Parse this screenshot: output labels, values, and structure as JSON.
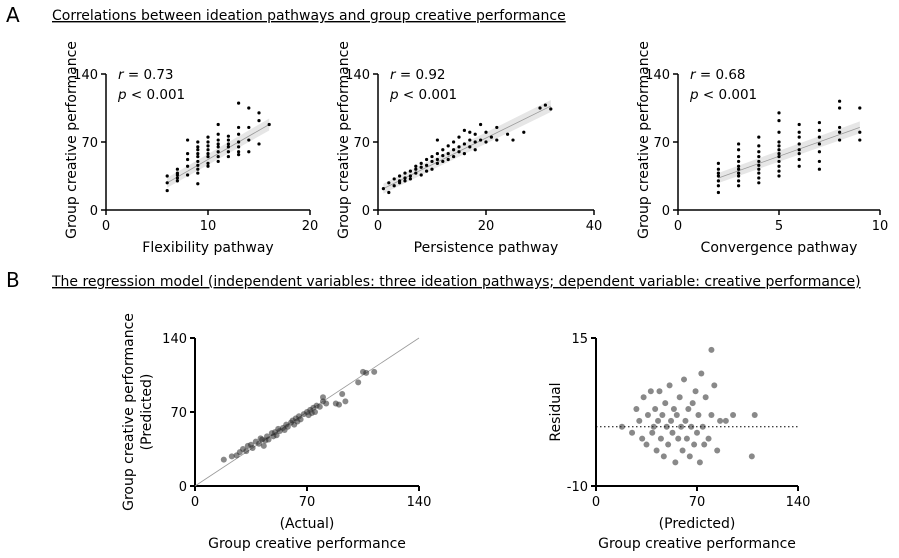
{
  "panel_labels": {
    "a": "A",
    "b": "B"
  },
  "titles": {
    "a": "Correlations between ideation pathways and group creative performance",
    "b": "The regression model (independent variables: three ideation pathways; dependent variable: creative performance)"
  },
  "chart_data": [
    {
      "type": "scatter",
      "xlabel": "Flexibility pathway",
      "ylabel": "Group creative performance",
      "xlim": [
        0,
        20
      ],
      "ylim": [
        0,
        140
      ],
      "xticks": [
        "0",
        "10",
        "20"
      ],
      "yticks": [
        "0",
        "70",
        "140"
      ],
      "stat_r": "= 0.73",
      "stat_p": "< 0.001",
      "fit": [
        [
          6,
          28
        ],
        [
          16,
          88
        ]
      ],
      "confidence_band": true,
      "points": [
        [
          6,
          20
        ],
        [
          6,
          28
        ],
        [
          6,
          35
        ],
        [
          7,
          30
        ],
        [
          7,
          33
        ],
        [
          7,
          36
        ],
        [
          7,
          38
        ],
        [
          7,
          42
        ],
        [
          8,
          36
        ],
        [
          8,
          45
        ],
        [
          8,
          52
        ],
        [
          8,
          58
        ],
        [
          8,
          72
        ],
        [
          9,
          27
        ],
        [
          9,
          38
        ],
        [
          9,
          42
        ],
        [
          9,
          46
        ],
        [
          9,
          50
        ],
        [
          9,
          55
        ],
        [
          9,
          58
        ],
        [
          9,
          62
        ],
        [
          9,
          65
        ],
        [
          9,
          70
        ],
        [
          10,
          45
        ],
        [
          10,
          48
        ],
        [
          10,
          55
        ],
        [
          10,
          58
        ],
        [
          10,
          62
        ],
        [
          10,
          66
        ],
        [
          10,
          70
        ],
        [
          10,
          75
        ],
        [
          11,
          50
        ],
        [
          11,
          55
        ],
        [
          11,
          60
        ],
        [
          11,
          65
        ],
        [
          11,
          68
        ],
        [
          11,
          72
        ],
        [
          11,
          78
        ],
        [
          11,
          88
        ],
        [
          12,
          55
        ],
        [
          12,
          60
        ],
        [
          12,
          65
        ],
        [
          12,
          68
        ],
        [
          12,
          72
        ],
        [
          12,
          76
        ],
        [
          13,
          57
        ],
        [
          13,
          60
        ],
        [
          13,
          65
        ],
        [
          13,
          70
        ],
        [
          13,
          78
        ],
        [
          13,
          85
        ],
        [
          13,
          110
        ],
        [
          14,
          60
        ],
        [
          14,
          72
        ],
        [
          14,
          85
        ],
        [
          14,
          105
        ],
        [
          15,
          68
        ],
        [
          15,
          92
        ],
        [
          15,
          100
        ],
        [
          16,
          88
        ]
      ]
    },
    {
      "type": "scatter",
      "xlabel": "Persistence pathway",
      "ylabel": "Group creative performance",
      "xlim": [
        0,
        40
      ],
      "ylim": [
        0,
        140
      ],
      "xticks": [
        "0",
        "20",
        "40"
      ],
      "yticks": [
        "0",
        "70",
        "140"
      ],
      "stat_r": "= 0.92",
      "stat_p": "< 0.001",
      "fit": [
        [
          1,
          22
        ],
        [
          32,
          107
        ]
      ],
      "confidence_band": true,
      "points": [
        [
          1,
          22
        ],
        [
          2,
          18
        ],
        [
          2,
          28
        ],
        [
          3,
          25
        ],
        [
          3,
          32
        ],
        [
          4,
          30
        ],
        [
          4,
          35
        ],
        [
          4,
          28
        ],
        [
          5,
          33
        ],
        [
          5,
          38
        ],
        [
          5,
          30
        ],
        [
          6,
          35
        ],
        [
          6,
          40
        ],
        [
          6,
          32
        ],
        [
          7,
          38
        ],
        [
          7,
          42
        ],
        [
          7,
          45
        ],
        [
          8,
          36
        ],
        [
          8,
          44
        ],
        [
          8,
          48
        ],
        [
          9,
          40
        ],
        [
          9,
          46
        ],
        [
          9,
          52
        ],
        [
          10,
          42
        ],
        [
          10,
          50
        ],
        [
          10,
          55
        ],
        [
          11,
          48
        ],
        [
          11,
          52
        ],
        [
          11,
          58
        ],
        [
          11,
          72
        ],
        [
          12,
          50
        ],
        [
          12,
          56
        ],
        [
          12,
          62
        ],
        [
          13,
          52
        ],
        [
          13,
          58
        ],
        [
          13,
          66
        ],
        [
          14,
          55
        ],
        [
          14,
          62
        ],
        [
          14,
          70
        ],
        [
          15,
          60
        ],
        [
          15,
          65
        ],
        [
          15,
          75
        ],
        [
          16,
          58
        ],
        [
          16,
          68
        ],
        [
          16,
          82
        ],
        [
          17,
          65
        ],
        [
          17,
          72
        ],
        [
          17,
          80
        ],
        [
          18,
          62
        ],
        [
          18,
          70
        ],
        [
          18,
          78
        ],
        [
          19,
          72
        ],
        [
          19,
          88
        ],
        [
          20,
          70
        ],
        [
          20,
          80
        ],
        [
          21,
          75
        ],
        [
          22,
          72
        ],
        [
          22,
          85
        ],
        [
          24,
          78
        ],
        [
          25,
          72
        ],
        [
          27,
          80
        ],
        [
          30,
          105
        ],
        [
          31,
          108
        ],
        [
          32,
          104
        ]
      ]
    },
    {
      "type": "scatter",
      "xlabel": "Convergence pathway",
      "ylabel": "Group creative performance",
      "xlim": [
        0,
        10
      ],
      "ylim": [
        0,
        140
      ],
      "xticks": [
        "0",
        "5",
        "10"
      ],
      "yticks": [
        "0",
        "70",
        "140"
      ],
      "stat_r": "= 0.68",
      "stat_p": "< 0.001",
      "fit": [
        [
          2,
          33
        ],
        [
          9,
          85
        ]
      ],
      "confidence_band": true,
      "points": [
        [
          2,
          18
        ],
        [
          2,
          25
        ],
        [
          2,
          30
        ],
        [
          2,
          35
        ],
        [
          2,
          38
        ],
        [
          2,
          42
        ],
        [
          2,
          48
        ],
        [
          3,
          25
        ],
        [
          3,
          30
        ],
        [
          3,
          35
        ],
        [
          3,
          38
        ],
        [
          3,
          42
        ],
        [
          3,
          45
        ],
        [
          3,
          50
        ],
        [
          3,
          55
        ],
        [
          3,
          62
        ],
        [
          3,
          68
        ],
        [
          4,
          28
        ],
        [
          4,
          33
        ],
        [
          4,
          38
        ],
        [
          4,
          42
        ],
        [
          4,
          46
        ],
        [
          4,
          50
        ],
        [
          4,
          55
        ],
        [
          4,
          60
        ],
        [
          4,
          66
        ],
        [
          4,
          75
        ],
        [
          5,
          35
        ],
        [
          5,
          40
        ],
        [
          5,
          45
        ],
        [
          5,
          50
        ],
        [
          5,
          55
        ],
        [
          5,
          58
        ],
        [
          5,
          62
        ],
        [
          5,
          66
        ],
        [
          5,
          70
        ],
        [
          5,
          80
        ],
        [
          5,
          92
        ],
        [
          5,
          100
        ],
        [
          6,
          45
        ],
        [
          6,
          52
        ],
        [
          6,
          58
        ],
        [
          6,
          62
        ],
        [
          6,
          68
        ],
        [
          6,
          75
        ],
        [
          6,
          80
        ],
        [
          6,
          88
        ],
        [
          7,
          42
        ],
        [
          7,
          50
        ],
        [
          7,
          60
        ],
        [
          7,
          68
        ],
        [
          7,
          75
        ],
        [
          7,
          82
        ],
        [
          7,
          90
        ],
        [
          8,
          72
        ],
        [
          8,
          80
        ],
        [
          8,
          85
        ],
        [
          8,
          105
        ],
        [
          8,
          112
        ],
        [
          9,
          72
        ],
        [
          9,
          80
        ],
        [
          9,
          105
        ]
      ]
    },
    {
      "type": "scatter",
      "xlabel": "(Actual)",
      "xlabel2": "Group creative performance",
      "ylabel": "Group creative performance",
      "ylabel2": "(Predicted)",
      "xlim": [
        0,
        140
      ],
      "ylim": [
        0,
        140
      ],
      "xticks": [
        "0",
        "70",
        "140"
      ],
      "yticks": [
        "0",
        "70",
        "140"
      ],
      "fit": [
        [
          0,
          0
        ],
        [
          140,
          140
        ]
      ],
      "points": [
        [
          18,
          25
        ],
        [
          23,
          28
        ],
        [
          26,
          29
        ],
        [
          28,
          32
        ],
        [
          30,
          35
        ],
        [
          32,
          33
        ],
        [
          33,
          38
        ],
        [
          35,
          39
        ],
        [
          36,
          36
        ],
        [
          38,
          42
        ],
        [
          40,
          40
        ],
        [
          41,
          45
        ],
        [
          42,
          44
        ],
        [
          43,
          38
        ],
        [
          44,
          43
        ],
        [
          45,
          47
        ],
        [
          46,
          44
        ],
        [
          48,
          50
        ],
        [
          49,
          47
        ],
        [
          50,
          51
        ],
        [
          51,
          48
        ],
        [
          52,
          54
        ],
        [
          53,
          52
        ],
        [
          55,
          55
        ],
        [
          56,
          53
        ],
        [
          57,
          58
        ],
        [
          58,
          56
        ],
        [
          60,
          60
        ],
        [
          61,
          62
        ],
        [
          62,
          58
        ],
        [
          63,
          64
        ],
        [
          64,
          61
        ],
        [
          65,
          66
        ],
        [
          66,
          63
        ],
        [
          68,
          68
        ],
        [
          70,
          70
        ],
        [
          71,
          67
        ],
        [
          72,
          72
        ],
        [
          73,
          69
        ],
        [
          74,
          74
        ],
        [
          75,
          70
        ],
        [
          76,
          76
        ],
        [
          78,
          75
        ],
        [
          80,
          80
        ],
        [
          80,
          84
        ],
        [
          82,
          78
        ],
        [
          88,
          78
        ],
        [
          90,
          77
        ],
        [
          92,
          87
        ],
        [
          94,
          80
        ],
        [
          102,
          98
        ],
        [
          105,
          108
        ],
        [
          107,
          107
        ],
        [
          112,
          108
        ]
      ]
    },
    {
      "type": "scatter",
      "xlabel": "(Predicted)",
      "xlabel2": "Group creative performance",
      "ylabel": "Residual",
      "xlim": [
        0,
        140
      ],
      "ylim": [
        -10,
        15
      ],
      "xticks": [
        "0",
        "70",
        "140"
      ],
      "yticks": [
        "-10",
        "15"
      ],
      "reference_line": 0,
      "points": [
        [
          18,
          0
        ],
        [
          25,
          -1
        ],
        [
          28,
          3
        ],
        [
          30,
          1
        ],
        [
          32,
          -2
        ],
        [
          33,
          5
        ],
        [
          35,
          -3
        ],
        [
          36,
          2
        ],
        [
          38,
          6
        ],
        [
          39,
          -1
        ],
        [
          40,
          0
        ],
        [
          41,
          3
        ],
        [
          42,
          -4
        ],
        [
          43,
          1
        ],
        [
          44,
          6
        ],
        [
          45,
          -2
        ],
        [
          46,
          2
        ],
        [
          47,
          -5
        ],
        [
          48,
          4
        ],
        [
          49,
          0
        ],
        [
          50,
          -3
        ],
        [
          51,
          7
        ],
        [
          52,
          1
        ],
        [
          53,
          -1
        ],
        [
          54,
          3
        ],
        [
          55,
          -6
        ],
        [
          56,
          2
        ],
        [
          57,
          -2
        ],
        [
          58,
          5
        ],
        [
          59,
          0
        ],
        [
          60,
          -4
        ],
        [
          61,
          8
        ],
        [
          62,
          1
        ],
        [
          63,
          -2
        ],
        [
          64,
          3
        ],
        [
          65,
          -5
        ],
        [
          66,
          0
        ],
        [
          67,
          4
        ],
        [
          68,
          -3
        ],
        [
          69,
          6
        ],
        [
          70,
          -1
        ],
        [
          71,
          2
        ],
        [
          72,
          -6
        ],
        [
          73,
          9
        ],
        [
          74,
          0
        ],
        [
          75,
          -3
        ],
        [
          76,
          5
        ],
        [
          78,
          -2
        ],
        [
          80,
          13
        ],
        [
          80,
          2
        ],
        [
          82,
          7
        ],
        [
          84,
          -4
        ],
        [
          86,
          1
        ],
        [
          90,
          1
        ],
        [
          95,
          2
        ],
        [
          108,
          -5
        ],
        [
          110,
          2
        ]
      ]
    }
  ]
}
